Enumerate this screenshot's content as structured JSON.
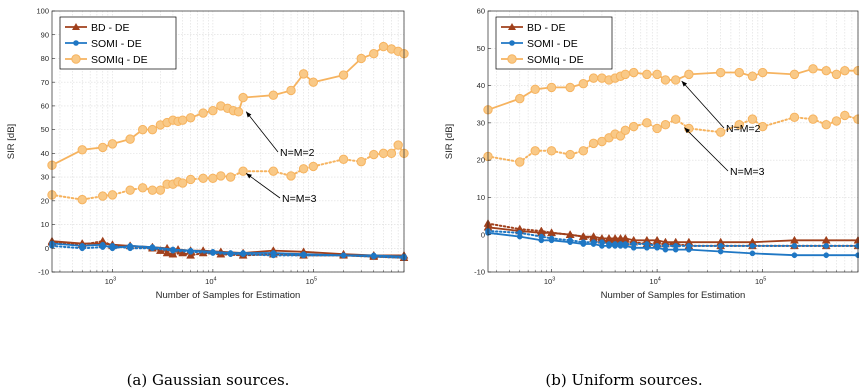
{
  "colors": {
    "bd": "#a0401c",
    "somi": "#1f77c4",
    "somiq": "#f6b35f",
    "grid": "#dcdcdc",
    "axis": "#262626"
  },
  "chart_data": [
    {
      "type": "line",
      "caption": "(a) Gaussian sources.",
      "xlabel": "Number of Samples for Estimation",
      "ylabel": "SIR [dB]",
      "xscale": "log",
      "xlim": [
        250,
        800000
      ],
      "ylim": [
        -10,
        100
      ],
      "yticks": [
        -10,
        0,
        10,
        20,
        30,
        40,
        50,
        60,
        70,
        80,
        90,
        100
      ],
      "xticks": [
        {
          "value": 1000,
          "base": "10",
          "exp": "3"
        },
        {
          "value": 10000,
          "base": "10",
          "exp": "4"
        },
        {
          "value": 100000,
          "base": "10",
          "exp": "5"
        }
      ],
      "grid": true,
      "legend": {
        "position": "top-left",
        "entries": [
          "BD - DE",
          "SOMI - DE",
          "SOMIq - DE"
        ]
      },
      "annotations": [
        {
          "text": "N=M=2",
          "x": 19000,
          "y": 58
        },
        {
          "text": "N=M=3",
          "x": 19000,
          "y": 32
        }
      ],
      "series": [
        {
          "name": "BD - DE",
          "style": "solid",
          "marker": "triangle",
          "color": "bd",
          "x": [
            250,
            500,
            800,
            1000,
            1500,
            2500,
            3500,
            4500,
            6000,
            8000,
            12000,
            20000,
            40000,
            80000,
            200000,
            400000,
            800000
          ],
          "y": [
            3,
            2,
            2,
            1.5,
            1,
            0.5,
            0,
            -0.5,
            -1,
            -1,
            -1.5,
            -2,
            -1,
            -1.5,
            -2.5,
            -3,
            -3
          ]
        },
        {
          "name": "",
          "style": "dotted",
          "marker": "triangle",
          "color": "bd",
          "x": [
            250,
            500,
            800,
            1000,
            1500,
            2500,
            3000,
            3500,
            4000,
            5000,
            6000,
            8000,
            12000,
            20000,
            40000,
            80000,
            200000,
            400000,
            800000
          ],
          "y": [
            2.5,
            1.5,
            3,
            1,
            1,
            0,
            -1,
            -2,
            -2.5,
            -2,
            -3,
            -2,
            -2.5,
            -3,
            -2.5,
            -3,
            -3,
            -3.5,
            -4
          ]
        },
        {
          "name": "SOMI - DE",
          "style": "solid",
          "marker": "circle",
          "color": "somi",
          "x": [
            250,
            500,
            800,
            1000,
            1500,
            2500,
            4000,
            6000,
            10000,
            15000,
            20000,
            40000,
            80000,
            200000,
            400000,
            800000
          ],
          "y": [
            2,
            1,
            1.5,
            0,
            1,
            0.5,
            -0.5,
            -1,
            -1.5,
            -2,
            -2,
            -2,
            -2.5,
            -3,
            -3,
            -3.5
          ]
        },
        {
          "name": "",
          "style": "dotted",
          "marker": "circle",
          "color": "somi",
          "x": [
            250,
            500,
            800,
            1000,
            1500,
            2500,
            4000,
            6000,
            10000,
            15000,
            20000,
            40000,
            80000,
            200000,
            400000,
            800000
          ],
          "y": [
            1,
            0,
            0.5,
            1,
            0,
            0,
            -1,
            -1.5,
            -2,
            -2.5,
            -2.5,
            -3,
            -3,
            -3,
            -3.5,
            -4
          ]
        },
        {
          "name": "SOMIq - DE",
          "style": "solid",
          "marker": "circle",
          "color": "somiq",
          "x": [
            250,
            500,
            800,
            1000,
            1500,
            2000,
            2500,
            3000,
            3500,
            4000,
            4500,
            5000,
            6000,
            8000,
            10000,
            12000,
            14000,
            16000,
            18000,
            20000,
            40000,
            60000,
            80000,
            100000,
            200000,
            300000,
            400000,
            500000,
            600000,
            700000,
            800000
          ],
          "y": [
            35,
            41.5,
            42.5,
            44,
            46,
            50,
            50,
            52,
            53,
            54,
            53.5,
            54,
            55,
            57,
            58,
            60,
            59,
            58,
            57.5,
            63.5,
            64.5,
            66.5,
            73.5,
            70,
            73,
            80,
            82,
            85,
            84,
            83,
            82
          ]
        },
        {
          "name": "",
          "style": "dotted",
          "marker": "circle",
          "color": "somiq",
          "x": [
            250,
            500,
            800,
            1000,
            1500,
            2000,
            2500,
            3000,
            3500,
            4000,
            4500,
            5000,
            6000,
            8000,
            10000,
            12000,
            15000,
            20000,
            40000,
            60000,
            80000,
            100000,
            200000,
            300000,
            400000,
            500000,
            600000,
            700000,
            800000
          ],
          "y": [
            22.5,
            20.5,
            22,
            22.5,
            24.5,
            25.5,
            24.5,
            24.5,
            27,
            27,
            28,
            27.5,
            29,
            29.5,
            29.5,
            30.5,
            30,
            32.5,
            32.5,
            30.5,
            33.5,
            34.5,
            37.5,
            36.5,
            39.5,
            40,
            40,
            43.5,
            40
          ]
        }
      ]
    },
    {
      "type": "line",
      "caption": "(b) Uniform sources.",
      "xlabel": "Number of Samples for Estimation",
      "ylabel": "SIR [dB]",
      "xscale": "log",
      "xlim": [
        250,
        800000
      ],
      "ylim": [
        -10,
        60
      ],
      "yticks": [
        -10,
        0,
        10,
        20,
        30,
        40,
        50,
        60
      ],
      "xticks": [
        {
          "value": 1000,
          "base": "10",
          "exp": "3"
        },
        {
          "value": 10000,
          "base": "10",
          "exp": "4"
        },
        {
          "value": 100000,
          "base": "10",
          "exp": "5"
        }
      ],
      "grid": true,
      "legend": {
        "position": "top-left",
        "entries": [
          "BD - DE",
          "SOMI - DE",
          "SOMIq - DE"
        ]
      },
      "annotations": [
        {
          "text": "N=M=2",
          "x": 16000,
          "y": 41.5
        },
        {
          "text": "N=M=3",
          "x": 16000,
          "y": 29
        }
      ],
      "series": [
        {
          "name": "BD - DE",
          "style": "solid",
          "marker": "triangle",
          "color": "bd",
          "x": [
            250,
            500,
            800,
            1000,
            1500,
            2000,
            2500,
            3000,
            3500,
            4000,
            4500,
            5000,
            6000,
            8000,
            10000,
            12000,
            15000,
            20000,
            40000,
            80000,
            200000,
            400000,
            800000
          ],
          "y": [
            2,
            1,
            0.5,
            0.5,
            0,
            -0.5,
            -0.5,
            -1,
            -1,
            -1,
            -1,
            -1,
            -1.5,
            -1.5,
            -1.5,
            -2,
            -2,
            -2,
            -2,
            -2,
            -1.5,
            -1.5,
            -1.5
          ]
        },
        {
          "name": "",
          "style": "dotted",
          "marker": "triangle",
          "color": "bd",
          "x": [
            250,
            500,
            800,
            1000,
            1500,
            2000,
            2500,
            3000,
            3500,
            4000,
            4500,
            5000,
            6000,
            8000,
            10000,
            12000,
            15000,
            20000,
            40000,
            80000,
            200000,
            400000,
            800000
          ],
          "y": [
            3,
            1.5,
            1,
            0.5,
            0,
            -0.5,
            -1,
            -1.5,
            -1.5,
            -2,
            -2,
            -2,
            -2,
            -2.5,
            -2.5,
            -2.5,
            -2.5,
            -3,
            -3,
            -3,
            -3,
            -3,
            -3
          ]
        },
        {
          "name": "SOMI - DE",
          "style": "solid",
          "marker": "circle",
          "color": "somi",
          "x": [
            250,
            500,
            800,
            1000,
            1500,
            2000,
            2500,
            3000,
            3500,
            4000,
            4500,
            5000,
            6000,
            8000,
            10000,
            12000,
            15000,
            20000,
            40000,
            80000,
            200000,
            400000,
            800000
          ],
          "y": [
            0.5,
            -0.5,
            -1.5,
            -1.5,
            -2,
            -2.5,
            -2.5,
            -3,
            -3,
            -3,
            -3,
            -3,
            -3.5,
            -3.5,
            -3.5,
            -4,
            -4,
            -4,
            -4.5,
            -5,
            -5.5,
            -5.5,
            -5.5
          ]
        },
        {
          "name": "",
          "style": "dotted",
          "marker": "circle",
          "color": "somi",
          "x": [
            250,
            500,
            800,
            1000,
            1500,
            2000,
            2500,
            3000,
            3500,
            4000,
            4500,
            5000,
            6000,
            8000,
            10000,
            12000,
            15000,
            20000,
            40000,
            80000,
            200000,
            400000,
            800000
          ],
          "y": [
            1,
            0.5,
            -0.5,
            -1,
            -1.5,
            -2,
            -2,
            -2,
            -2.5,
            -2.5,
            -2.5,
            -2.5,
            -2.5,
            -2.5,
            -3,
            -3,
            -3,
            -3,
            -3,
            -3,
            -3,
            -3,
            -3
          ]
        },
        {
          "name": "SOMIq - DE",
          "style": "solid",
          "marker": "circle",
          "color": "somiq",
          "x": [
            250,
            500,
            700,
            1000,
            1500,
            2000,
            2500,
            3000,
            3500,
            4000,
            4500,
            5000,
            6000,
            8000,
            10000,
            12000,
            15000,
            20000,
            40000,
            60000,
            80000,
            100000,
            200000,
            300000,
            400000,
            500000,
            600000,
            800000
          ],
          "y": [
            33.5,
            36.5,
            39,
            39.5,
            39.5,
            40.5,
            42,
            42,
            41.5,
            42,
            42.5,
            43,
            43.5,
            43,
            43,
            41.5,
            41.5,
            43,
            43.5,
            43.5,
            42.5,
            43.5,
            43,
            44.5,
            44,
            43,
            44,
            44
          ]
        },
        {
          "name": "",
          "style": "dotted",
          "marker": "circle",
          "color": "somiq",
          "x": [
            250,
            500,
            700,
            1000,
            1500,
            2000,
            2500,
            3000,
            3500,
            4000,
            4500,
            5000,
            6000,
            8000,
            10000,
            12000,
            15000,
            20000,
            40000,
            60000,
            80000,
            100000,
            200000,
            300000,
            400000,
            500000,
            600000,
            800000
          ],
          "y": [
            21,
            19.5,
            22.5,
            22.5,
            21.5,
            22.5,
            24.5,
            25,
            26,
            27,
            26.5,
            28,
            29,
            30,
            28.5,
            29.5,
            31,
            28.5,
            27.5,
            29.5,
            31,
            29,
            31.5,
            31,
            29.5,
            30.5,
            32,
            31
          ]
        }
      ]
    }
  ]
}
